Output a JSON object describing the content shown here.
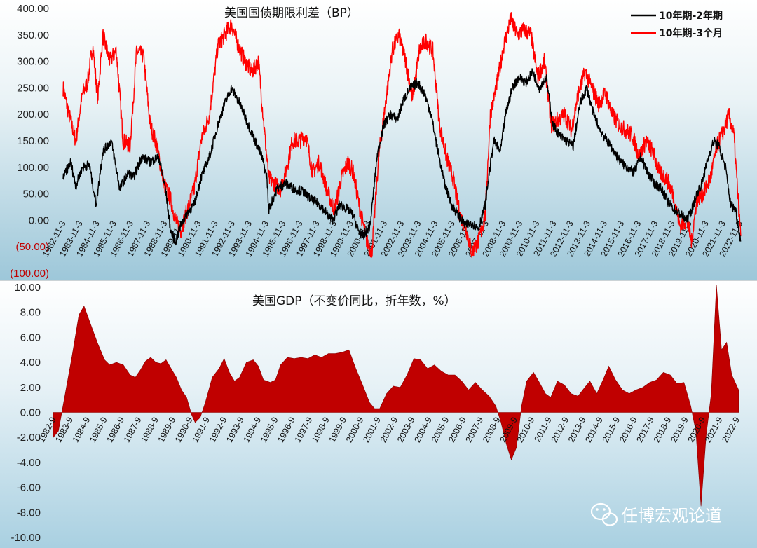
{
  "chart_data": [
    {
      "type": "line",
      "title": "美国国债期限利差（BP）",
      "ylim": [
        -100,
        400
      ],
      "y_ticks": [
        400,
        350,
        300,
        250,
        200,
        150,
        100,
        50,
        0,
        -50,
        -100
      ],
      "y_tick_labels": [
        "400.00",
        "350.00",
        "300.00",
        "250.00",
        "200.00",
        "150.00",
        "100.00",
        "50.00",
        "0.00",
        "(50.00)",
        "(100.00)"
      ],
      "x_range": [
        "1982-11",
        "2022-12"
      ],
      "x_tick_labels": [
        "1982-11-3",
        "1983-11-3",
        "1984-11-3",
        "1985-11-3",
        "1986-11-3",
        "1987-11-3",
        "1988-11-3",
        "1989-11-3",
        "1990-11-3",
        "1991-11-3",
        "1992-11-3",
        "1993-11-3",
        "1994-11-3",
        "1995-11-3",
        "1996-11-3",
        "1997-11-3",
        "1998-11-3",
        "1999-11-3",
        "2000-11-3",
        "2001-11-3",
        "2002-11-3",
        "2003-11-3",
        "2004-11-3",
        "2005-11-3",
        "2006-11-3",
        "2007-11-3",
        "2008-11-3",
        "2009-11-3",
        "2010-11-3",
        "2011-11-3",
        "2012-11-3",
        "2013-11-3",
        "2014-11-3",
        "2015-11-3",
        "2016-11-3",
        "2017-11-3",
        "2018-11-3",
        "2019-11-3",
        "2020-11-3",
        "2021-11-3",
        "2022-11-3"
      ],
      "legend_position": "top-right",
      "series": [
        {
          "name": "10年期-2年期",
          "color": "#000000",
          "x": [
            1982.85,
            1983.3,
            1983.6,
            1984.0,
            1984.4,
            1984.8,
            1985.2,
            1985.7,
            1986.2,
            1986.7,
            1987.0,
            1987.5,
            1988.0,
            1988.5,
            1988.9,
            1989.2,
            1989.5,
            1989.8,
            1990.2,
            1990.6,
            1991.0,
            1991.5,
            1992.0,
            1992.4,
            1992.8,
            1993.3,
            1993.8,
            1994.2,
            1994.6,
            1994.9,
            1995.0,
            1995.5,
            1996.0,
            1996.5,
            1997.0,
            1997.5,
            1998.0,
            1998.5,
            1998.8,
            1999.2,
            1999.7,
            2000.0,
            2000.3,
            2000.6,
            2001.0,
            2001.4,
            2001.8,
            2002.2,
            2002.6,
            2003.0,
            2003.4,
            2003.8,
            2004.2,
            2004.6,
            2005.0,
            2005.4,
            2005.8,
            2006.2,
            2006.6,
            2007.0,
            2007.4,
            2007.8,
            2008.0,
            2008.3,
            2008.7,
            2009.0,
            2009.4,
            2009.8,
            2010.2,
            2010.6,
            2011.0,
            2011.4,
            2011.8,
            2012.2,
            2012.6,
            2013.0,
            2013.4,
            2013.8,
            2014.2,
            2014.6,
            2015.0,
            2015.4,
            2015.8,
            2016.2,
            2016.6,
            2017.0,
            2017.4,
            2017.8,
            2018.2,
            2018.6,
            2019.0,
            2019.4,
            2019.7,
            2020.0,
            2020.3,
            2020.6,
            2021.0,
            2021.3,
            2021.6,
            2022.0,
            2022.3,
            2022.6,
            2022.9
          ],
          "values": [
            80,
            110,
            65,
            100,
            105,
            30,
            130,
            150,
            60,
            90,
            80,
            120,
            110,
            120,
            60,
            -20,
            -40,
            -10,
            15,
            30,
            80,
            120,
            180,
            220,
            250,
            220,
            180,
            150,
            120,
            80,
            20,
            60,
            70,
            60,
            55,
            40,
            30,
            10,
            0,
            30,
            20,
            10,
            -20,
            -30,
            -10,
            120,
            180,
            200,
            190,
            230,
            250,
            260,
            240,
            200,
            130,
            70,
            30,
            10,
            -10,
            -5,
            -15,
            30,
            80,
            150,
            130,
            200,
            250,
            270,
            260,
            280,
            250,
            270,
            180,
            160,
            150,
            140,
            220,
            250,
            200,
            170,
            150,
            130,
            110,
            100,
            90,
            120,
            90,
            70,
            60,
            35,
            20,
            10,
            0,
            20,
            50,
            70,
            120,
            150,
            140,
            100,
            30,
            20,
            -40
          ]
        },
        {
          "name": "10年期-3个月",
          "color": "#ff0000",
          "x": [
            1982.85,
            1983.2,
            1983.6,
            1984.0,
            1984.3,
            1984.6,
            1984.9,
            1985.2,
            1985.6,
            1986.0,
            1986.4,
            1986.8,
            1987.2,
            1987.6,
            1988.0,
            1988.4,
            1988.8,
            1989.2,
            1989.5,
            1989.8,
            1990.2,
            1990.6,
            1991.0,
            1991.5,
            1992.0,
            1992.4,
            1992.8,
            1993.2,
            1993.6,
            1994.0,
            1994.4,
            1994.8,
            1995.0,
            1995.3,
            1995.7,
            1996.0,
            1996.4,
            1996.8,
            1997.2,
            1997.6,
            1998.0,
            1998.5,
            1998.9,
            1999.3,
            1999.7,
            2000.0,
            2000.4,
            2000.8,
            2001.1,
            2001.5,
            2001.9,
            2002.3,
            2002.7,
            2003.1,
            2003.5,
            2003.9,
            2004.3,
            2004.7,
            2005.1,
            2005.5,
            2005.9,
            2006.3,
            2006.7,
            2007.0,
            2007.4,
            2007.8,
            2008.1,
            2008.5,
            2008.9,
            2009.3,
            2009.7,
            2010.1,
            2010.5,
            2010.9,
            2011.3,
            2011.7,
            2012.1,
            2012.5,
            2012.9,
            2013.3,
            2013.7,
            2014.1,
            2014.5,
            2014.9,
            2015.3,
            2015.7,
            2016.1,
            2016.5,
            2016.9,
            2017.3,
            2017.7,
            2018.1,
            2018.5,
            2018.9,
            2019.3,
            2019.7,
            2020.0,
            2020.3,
            2020.7,
            2021.1,
            2021.5,
            2021.9,
            2022.2,
            2022.5,
            2022.7,
            2022.9
          ],
          "values": [
            250,
            200,
            150,
            240,
            260,
            330,
            230,
            350,
            300,
            320,
            150,
            140,
            320,
            310,
            180,
            140,
            70,
            40,
            0,
            -20,
            20,
            60,
            150,
            200,
            330,
            350,
            370,
            330,
            300,
            280,
            300,
            150,
            80,
            70,
            60,
            90,
            150,
            150,
            160,
            90,
            110,
            50,
            20,
            80,
            110,
            90,
            20,
            -40,
            -60,
            120,
            220,
            320,
            350,
            300,
            230,
            320,
            340,
            320,
            180,
            120,
            80,
            10,
            -20,
            -60,
            -40,
            10,
            200,
            260,
            330,
            380,
            350,
            360,
            350,
            270,
            300,
            180,
            190,
            200,
            170,
            240,
            280,
            250,
            220,
            240,
            200,
            180,
            170,
            160,
            120,
            150,
            130,
            90,
            80,
            50,
            -10,
            0,
            -40,
            40,
            50,
            80,
            140,
            170,
            200,
            160,
            60,
            -30
          ]
        }
      ]
    },
    {
      "type": "area",
      "title": "美国GDP（不变价同比，折年数，%）",
      "ylim": [
        -10,
        10
      ],
      "y_ticks": [
        10,
        8,
        6,
        4,
        2,
        0,
        -2,
        -4,
        -6,
        -8,
        -10
      ],
      "y_tick_labels": [
        "10.00",
        "8.00",
        "6.00",
        "4.00",
        "2.00",
        "0.00",
        "-2.00",
        "-4.00",
        "-6.00",
        "-8.00",
        "-10.00"
      ],
      "x_tick_labels": [
        "1982-9",
        "1983-9",
        "1984-9",
        "1985-9",
        "1986-9",
        "1987-9",
        "1988-9",
        "1989-9",
        "1990-9",
        "1991-9",
        "1992-9",
        "1993-9",
        "1994-9",
        "1995-9",
        "1996-9",
        "1997-9",
        "1998-9",
        "1999-9",
        "2000-9",
        "2001-9",
        "2002-9",
        "2003-9",
        "2004-9",
        "2005-9",
        "2006-9",
        "2007-9",
        "2008-9",
        "2009-9",
        "2010-9",
        "2011-9",
        "2012-9",
        "2013-9",
        "2014-9",
        "2015-9",
        "2016-9",
        "2017-9",
        "2018-9",
        "2019-9",
        "2020-9",
        "2021-9",
        "2022-9"
      ],
      "series": [
        {
          "name": "",
          "color": "#c00000",
          "x": [
            1982.7,
            1983.0,
            1983.4,
            1983.8,
            1984.2,
            1984.5,
            1984.9,
            1985.3,
            1985.7,
            1986.0,
            1986.4,
            1986.8,
            1987.2,
            1987.5,
            1987.8,
            1988.1,
            1988.4,
            1988.7,
            1989.0,
            1989.3,
            1989.6,
            1989.9,
            1990.2,
            1990.5,
            1990.8,
            1991.0,
            1991.3,
            1991.6,
            1992.0,
            1992.4,
            1992.7,
            1993.0,
            1993.3,
            1993.6,
            1994.0,
            1994.4,
            1994.7,
            1995.0,
            1995.4,
            1995.7,
            1996.0,
            1996.4,
            1996.8,
            1997.2,
            1997.6,
            1998.0,
            1998.4,
            1998.8,
            1999.2,
            1999.6,
            2000.0,
            2000.4,
            2000.8,
            2001.2,
            2001.5,
            2001.8,
            2002.2,
            2002.6,
            2003.0,
            2003.4,
            2003.8,
            2004.2,
            2004.6,
            2005.0,
            2005.4,
            2005.8,
            2006.2,
            2006.6,
            2007.0,
            2007.4,
            2007.8,
            2008.2,
            2008.6,
            2008.9,
            2009.2,
            2009.5,
            2009.8,
            2010.1,
            2010.4,
            2010.8,
            2011.1,
            2011.5,
            2011.8,
            2012.2,
            2012.6,
            2013.0,
            2013.4,
            2013.8,
            2014.1,
            2014.5,
            2014.9,
            2015.2,
            2015.6,
            2016.0,
            2016.4,
            2016.8,
            2017.2,
            2017.6,
            2018.0,
            2018.4,
            2018.8,
            2019.2,
            2019.6,
            2020.0,
            2020.3,
            2020.6,
            2020.9,
            2021.2,
            2021.5,
            2021.8,
            2022.1,
            2022.4,
            2022.8
          ],
          "values": [
            -2.0,
            -1.5,
            1.5,
            4.5,
            7.8,
            8.5,
            7.0,
            5.5,
            4.2,
            3.8,
            4.0,
            3.8,
            3.0,
            2.8,
            3.4,
            4.1,
            4.4,
            4.0,
            3.9,
            4.2,
            3.5,
            2.8,
            1.8,
            1.2,
            -0.2,
            -0.8,
            -0.4,
            0.8,
            2.8,
            3.5,
            4.3,
            3.2,
            2.5,
            2.8,
            4.0,
            4.2,
            3.7,
            2.6,
            2.4,
            2.6,
            3.8,
            4.4,
            4.3,
            4.4,
            4.3,
            4.6,
            4.4,
            4.7,
            4.7,
            4.8,
            5.0,
            3.5,
            2.2,
            0.8,
            0.3,
            0.3,
            1.5,
            2.1,
            2.0,
            3.0,
            4.3,
            4.2,
            3.5,
            3.8,
            3.3,
            3.0,
            3.0,
            2.5,
            1.8,
            2.4,
            1.8,
            1.3,
            0.5,
            -0.8,
            -2.5,
            -3.8,
            -2.8,
            0.5,
            2.5,
            3.2,
            2.5,
            1.5,
            1.2,
            2.5,
            2.2,
            1.5,
            1.3,
            2.0,
            2.5,
            1.5,
            2.7,
            3.7,
            2.6,
            1.8,
            1.5,
            1.8,
            2.0,
            2.4,
            2.6,
            3.2,
            3.0,
            2.3,
            2.4,
            0.5,
            -1.5,
            -7.5,
            -1.8,
            1.5,
            10.2,
            5.0,
            5.6,
            3.0,
            1.8
          ]
        }
      ]
    }
  ],
  "watermark": {
    "icon": "wechat-icon",
    "text": "任博宏观论道"
  }
}
